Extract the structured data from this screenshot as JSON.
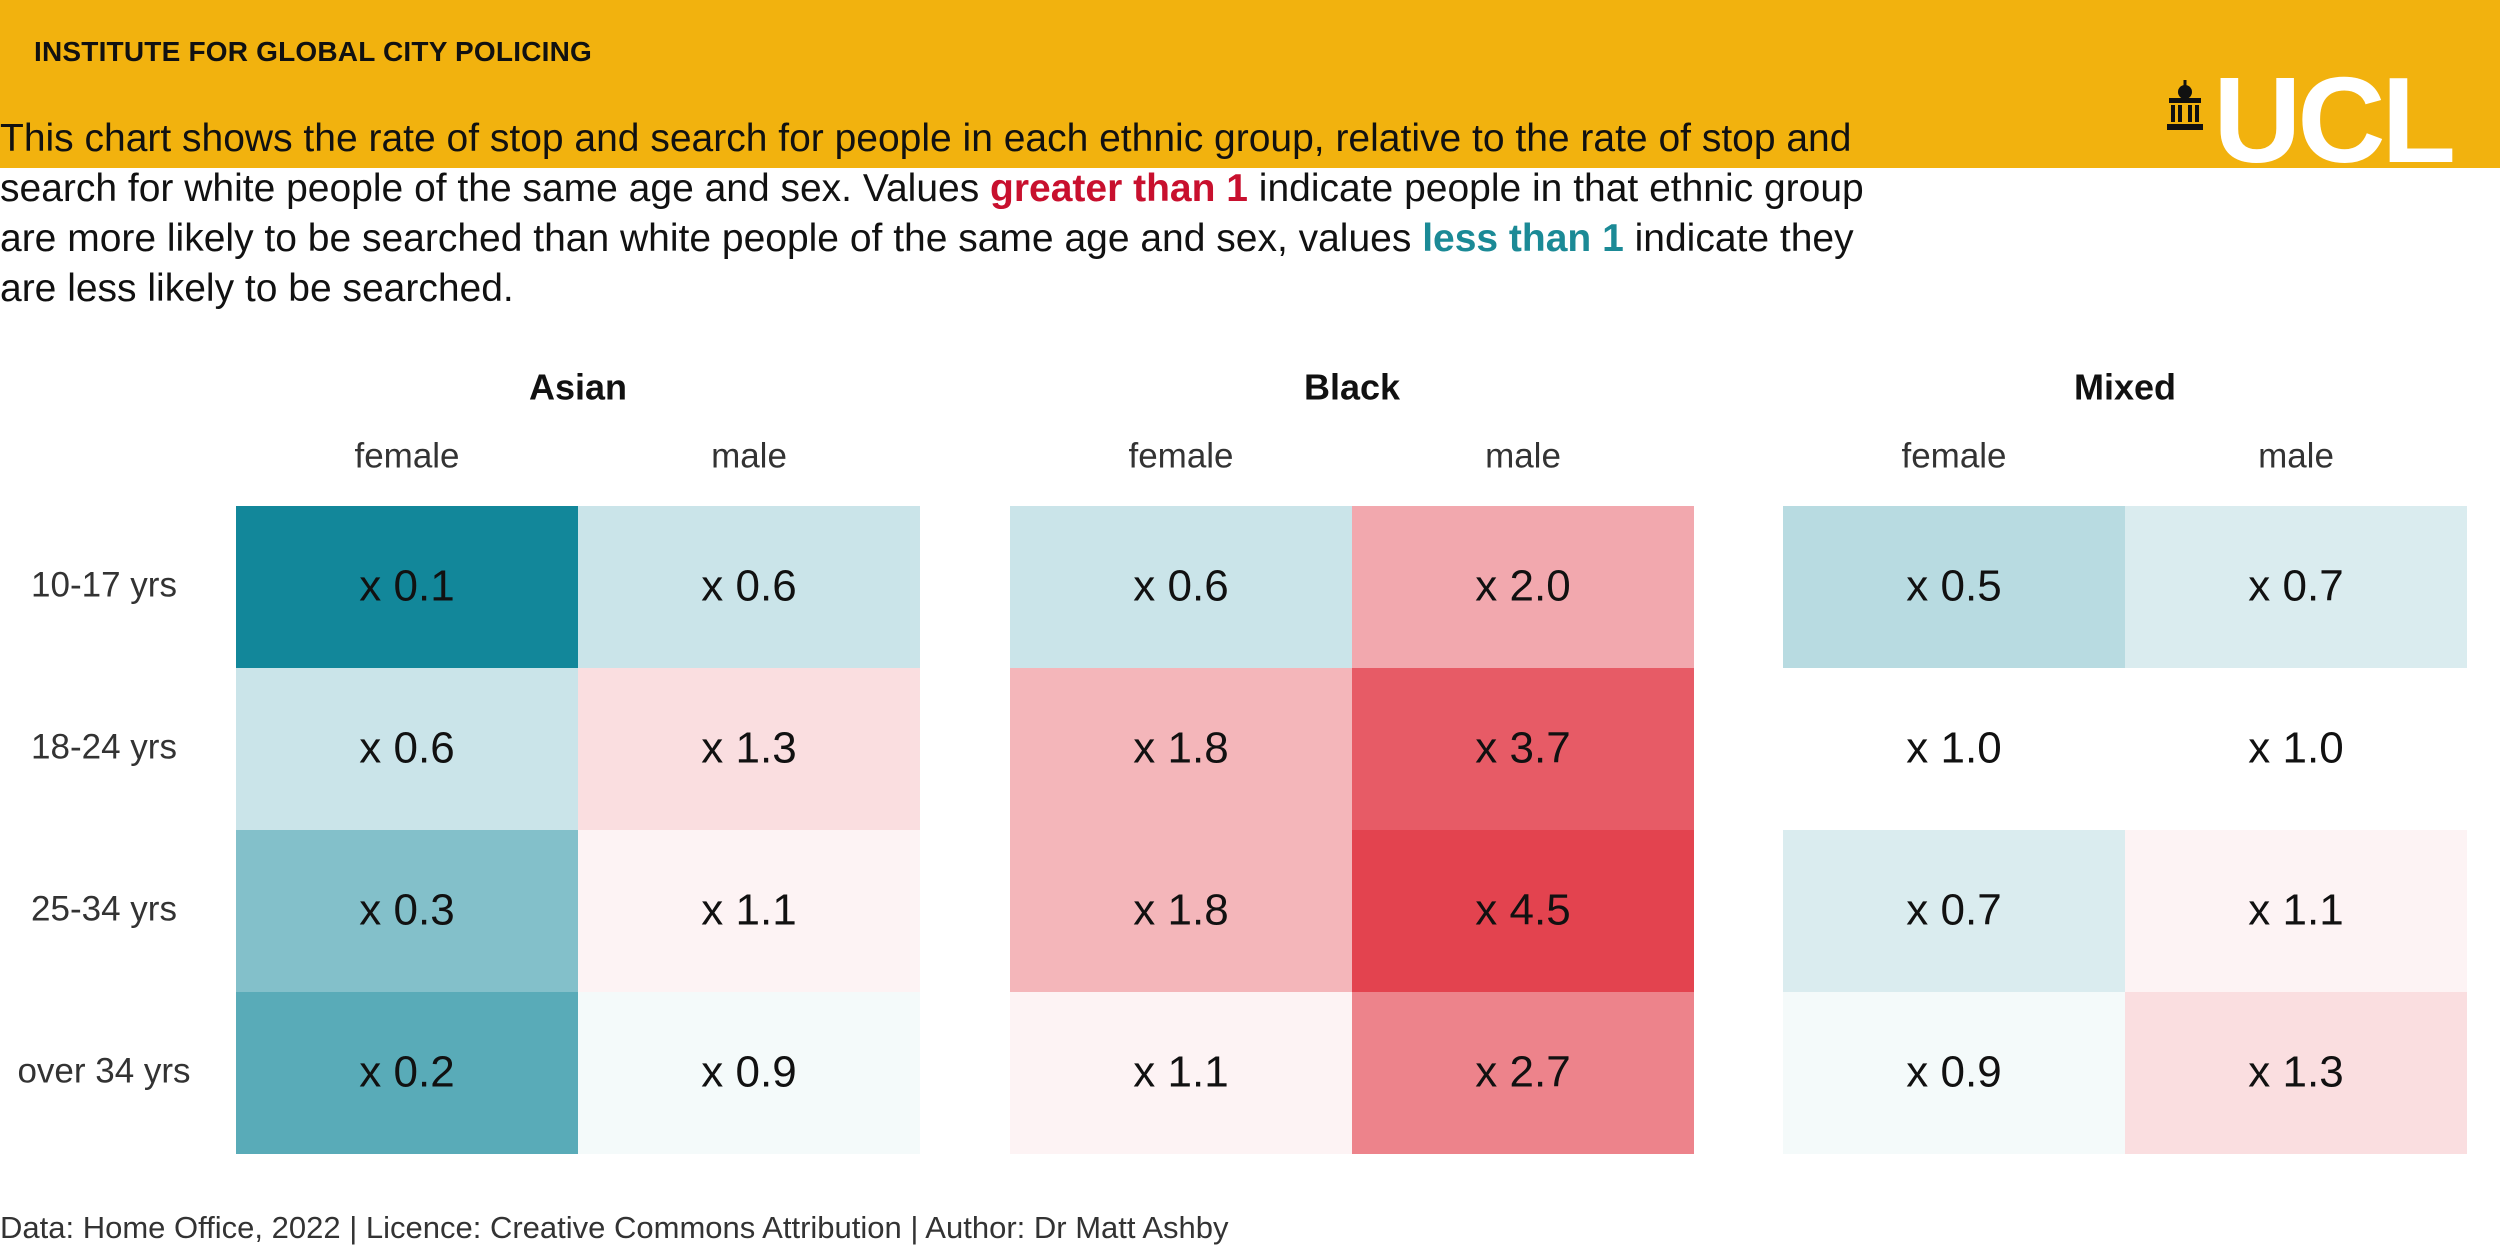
{
  "header": {
    "institute": "INSTITUTE FOR GLOBAL CITY POLICING",
    "logo_text": "UCL",
    "logo_icon": "portico-building-icon",
    "banner_color": "#f2b20e"
  },
  "intro": {
    "part1": "This chart shows the rate of stop and search for people in each ethnic group, relative to the rate of stop and search for white people of the same age and sex. Values ",
    "highlight_greater": "greater than 1",
    "part2": " indicate people in that ethnic group are more likely to be searched than white people of the same age and sex, values ",
    "highlight_less": "less than 1",
    "part3": " indicate they are less likely to be searched.",
    "greater_color": "#c8102e",
    "less_color": "#1b8a96"
  },
  "chart_data": {
    "type": "heatmap",
    "groups": [
      "Asian",
      "Black",
      "Mixed"
    ],
    "sexes": [
      "female",
      "male"
    ],
    "age_bands": [
      "10-17 yrs",
      "18-24 yrs",
      "25-34 yrs",
      "over 34 yrs"
    ],
    "value_prefix": "x ",
    "values": {
      "Asian": {
        "female": [
          0.1,
          0.6,
          0.3,
          0.2
        ],
        "male": [
          0.6,
          1.3,
          1.1,
          0.9
        ]
      },
      "Black": {
        "female": [
          0.6,
          1.8,
          1.8,
          1.1
        ],
        "male": [
          2.0,
          3.7,
          4.5,
          2.7
        ]
      },
      "Mixed": {
        "female": [
          0.5,
          1.0,
          0.7,
          0.9
        ],
        "male": [
          0.7,
          1.0,
          1.1,
          1.3
        ]
      }
    },
    "color_scale": {
      "low_color": "#12879a",
      "neutral_color": "#ffffff",
      "high_color": "#e3434f",
      "midpoint": 1.0
    }
  },
  "footer": {
    "text": "Data: Home Office, 2022 | Licence: Creative Commons Attribution | Author: Dr Matt Ashby"
  }
}
